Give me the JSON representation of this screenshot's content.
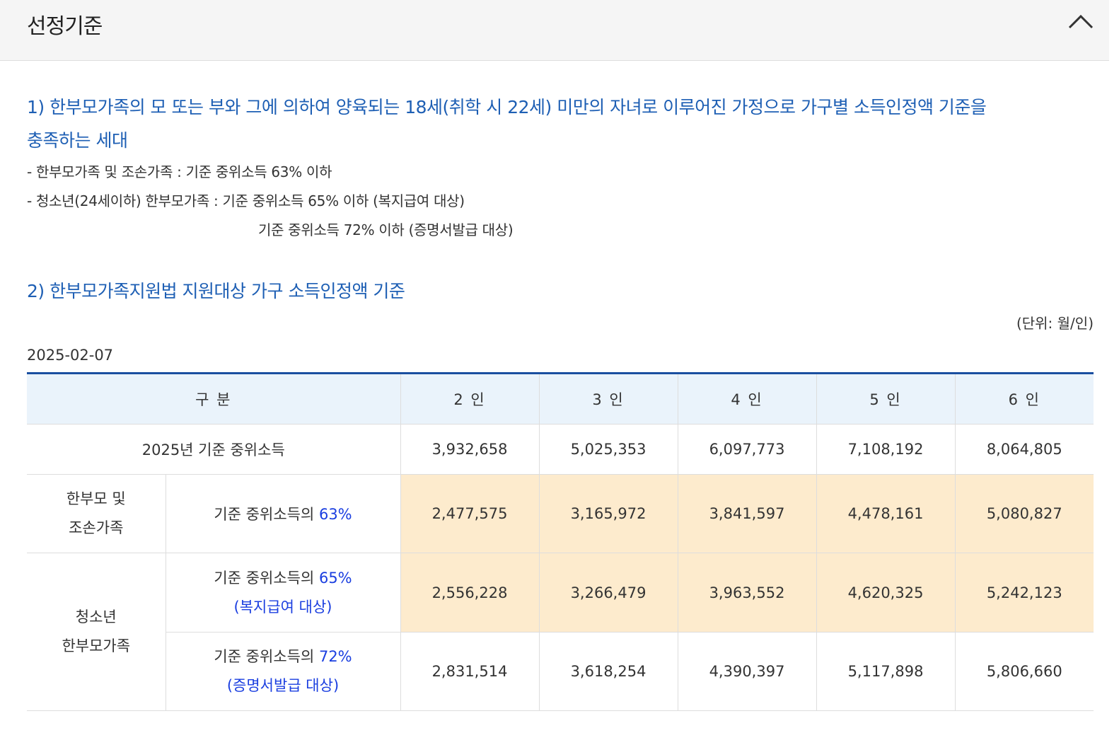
{
  "header": {
    "title": "선정기준"
  },
  "section1": {
    "title_line1": "1) 한부모가족의 모 또는 부와 그에 의하여 양육되는 18세(취학 시 22세) 미만의 자녀로 이루어진 가정으로 가구별 소득인정액 기준을",
    "title_line2": "충족하는 세대",
    "bullets": [
      "-  한부모가족 및 조손가족 : 기준 중위소득 63% 이하",
      "-  청소년(24세이하) 한부모가족 : 기준 중위소득 65% 이하 (복지급여 대상)",
      "기준 중위소득 72% 이하 (증명서발급 대상)"
    ]
  },
  "section2": {
    "title": "2) 한부모가족지원법 지원대상 가구 소득인정액 기준",
    "unit": "(단위: 월/인)",
    "date": "2025-02-07"
  },
  "table": {
    "headers": [
      "구 분",
      "2 인",
      "3 인",
      "4 인",
      "5 인",
      "6 인"
    ],
    "median_row": {
      "label": "2025년 기준 중위소득",
      "values": [
        "3,932,658",
        "5,025,353",
        "6,097,773",
        "7,108,192",
        "8,064,805"
      ]
    },
    "group1": {
      "label_line1": "한부모 및",
      "label_line2": "조손가족",
      "row": {
        "label_prefix": "기준 중위소득의 ",
        "pct": "63%",
        "values": [
          "2,477,575",
          "3,165,972",
          "3,841,597",
          "4,478,161",
          "5,080,827"
        ]
      }
    },
    "group2": {
      "label_line1": "청소년",
      "label_line2": "한부모가족",
      "row1": {
        "label_prefix": "기준 중위소득의 ",
        "pct": "65%",
        "note": "(복지급여 대상)",
        "values": [
          "2,556,228",
          "3,266,479",
          "3,963,552",
          "4,620,325",
          "5,242,123"
        ]
      },
      "row2": {
        "label_prefix": "기준 중위소득의 ",
        "pct": "72%",
        "note": "(증명서발급 대상)",
        "values": [
          "2,831,514",
          "3,618,254",
          "4,390,397",
          "5,117,898",
          "5,806,660"
        ]
      }
    }
  },
  "colors": {
    "title_blue": "#1e5fb4",
    "pct_blue": "#1a3ee0",
    "highlight": "#fdebcd",
    "header_bg": "#eaf3fb",
    "table_top_border": "#1a4fa0"
  }
}
